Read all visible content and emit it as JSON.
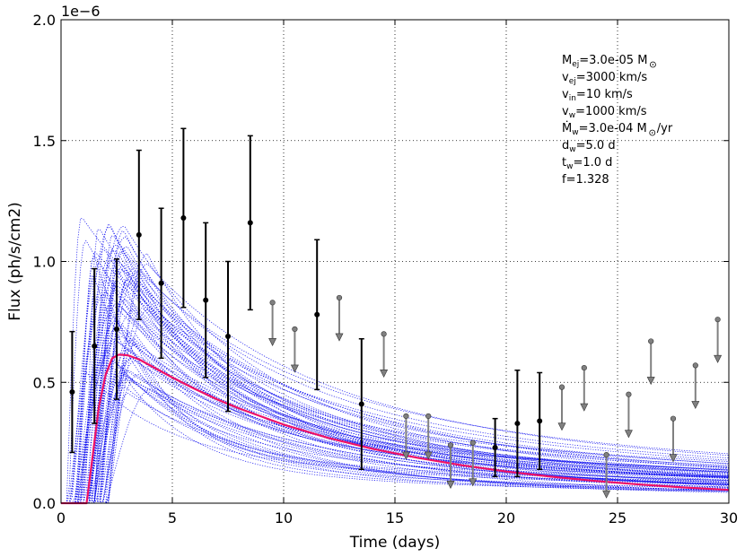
{
  "chart_data": {
    "type": "line",
    "title": "",
    "xlabel": "Time (days)",
    "ylabel": "Flux (ph/s/cm2)",
    "xlim": [
      0,
      30
    ],
    "ylim": [
      0,
      2e-06
    ],
    "y_scale_label": "1e−6",
    "x_ticks": [
      0,
      5,
      10,
      15,
      20,
      25,
      30
    ],
    "x_tick_labels": [
      "0",
      "5",
      "10",
      "15",
      "20",
      "25",
      "30"
    ],
    "y_ticks": [
      0,
      5e-07,
      1e-06,
      1.5e-06,
      2e-06
    ],
    "y_tick_labels": [
      "0.0",
      "0.5",
      "1.0",
      "1.5",
      "2.0"
    ],
    "grid": true,
    "colors": {
      "model_samples": "#0000ee",
      "best_fit": "#ee1166",
      "detections": "#000000",
      "upper_limits": "#808080"
    },
    "best_fit_model": {
      "t_start": 1.15,
      "t_peak": 2.7,
      "peak_flux": 6.15e-07,
      "x": [
        1.15,
        1.4,
        1.7,
        2.0,
        2.3,
        2.6,
        3.0,
        3.5,
        4.0,
        5.0,
        6.0,
        7.0,
        8.0,
        10.0,
        12.0,
        14.0,
        16.0,
        18.0,
        20.0,
        22.0,
        24.0,
        26.0,
        28.0,
        30.0
      ],
      "y": [
        0.0,
        1.8e-07,
        4e-07,
        5.3e-07,
        6e-07,
        6.15e-07,
        6.12e-07,
        5.95e-07,
        5.7e-07,
        5.2e-07,
        4.73e-07,
        4.3e-07,
        3.92e-07,
        3.25e-07,
        2.7e-07,
        2.25e-07,
        1.88e-07,
        1.57e-07,
        1.31e-07,
        1.1e-07,
        9.2e-08,
        7.7e-08,
        6.5e-08,
        5.5e-08
      ]
    },
    "detections": [
      {
        "x": 0.5,
        "y": 4.6e-07,
        "err": 2.5e-07
      },
      {
        "x": 1.5,
        "y": 6.5e-07,
        "err": 3.2e-07
      },
      {
        "x": 2.5,
        "y": 7.2e-07,
        "err": 2.9e-07
      },
      {
        "x": 3.5,
        "y": 1.11e-06,
        "err": 3.5e-07
      },
      {
        "x": 4.5,
        "y": 9.1e-07,
        "err": 3.1e-07
      },
      {
        "x": 5.5,
        "y": 1.18e-06,
        "err": 3.7e-07
      },
      {
        "x": 6.5,
        "y": 8.4e-07,
        "err": 3.2e-07
      },
      {
        "x": 7.5,
        "y": 6.9e-07,
        "err": 3.1e-07
      },
      {
        "x": 8.5,
        "y": 1.16e-06,
        "err": 3.6e-07
      },
      {
        "x": 11.5,
        "y": 7.8e-07,
        "err": 3.1e-07
      },
      {
        "x": 13.5,
        "y": 4.1e-07,
        "err": 2.7e-07
      },
      {
        "x": 19.5,
        "y": 2.3e-07,
        "err": 1.2e-07
      },
      {
        "x": 20.5,
        "y": 3.3e-07,
        "err": 2.2e-07
      },
      {
        "x": 21.5,
        "y": 3.4e-07,
        "err": 2e-07
      }
    ],
    "upper_limits": [
      {
        "x": 9.5,
        "y": 8.3e-07
      },
      {
        "x": 10.5,
        "y": 7.2e-07
      },
      {
        "x": 12.5,
        "y": 8.5e-07
      },
      {
        "x": 14.5,
        "y": 7e-07
      },
      {
        "x": 15.5,
        "y": 3.6e-07
      },
      {
        "x": 16.5,
        "y": 3.6e-07
      },
      {
        "x": 17.5,
        "y": 2.4e-07
      },
      {
        "x": 18.5,
        "y": 2.5e-07
      },
      {
        "x": 22.5,
        "y": 4.8e-07
      },
      {
        "x": 23.5,
        "y": 5.6e-07
      },
      {
        "x": 24.5,
        "y": 2e-07
      },
      {
        "x": 25.5,
        "y": 4.5e-07
      },
      {
        "x": 26.5,
        "y": 6.7e-07
      },
      {
        "x": 27.5,
        "y": 3.5e-07
      },
      {
        "x": 28.5,
        "y": 5.7e-07
      },
      {
        "x": 29.5,
        "y": 7.6e-07
      }
    ],
    "annotations": [
      {
        "key": "M_ej",
        "main": "M",
        "sub": "ej",
        "rest": "=3.0e-05 M",
        "sun": true,
        "tail": ""
      },
      {
        "key": "v_ej",
        "main": "v",
        "sub": "ej",
        "rest": "=3000 km/s",
        "sun": false,
        "tail": ""
      },
      {
        "key": "v_in",
        "main": "v",
        "sub": "in",
        "rest": "=10 km/s",
        "sun": false,
        "tail": ""
      },
      {
        "key": "v_w",
        "main": "v",
        "sub": "w",
        "rest": "=1000 km/s",
        "sun": false,
        "tail": ""
      },
      {
        "key": "Mdot_w",
        "main": "Ṁ",
        "sub": "w",
        "rest": "=3.0e-04 M",
        "sun": true,
        "tail": "/yr"
      },
      {
        "key": "d_w",
        "main": "d",
        "sub": "w",
        "rest": "=5.0 d",
        "sun": false,
        "tail": ""
      },
      {
        "key": "t_w",
        "main": "t",
        "sub": "w",
        "rest": "=1.0 d",
        "sun": false,
        "tail": ""
      },
      {
        "key": "f",
        "main": "f",
        "sub": "",
        "rest": "=1.328",
        "sun": false,
        "tail": ""
      }
    ]
  }
}
